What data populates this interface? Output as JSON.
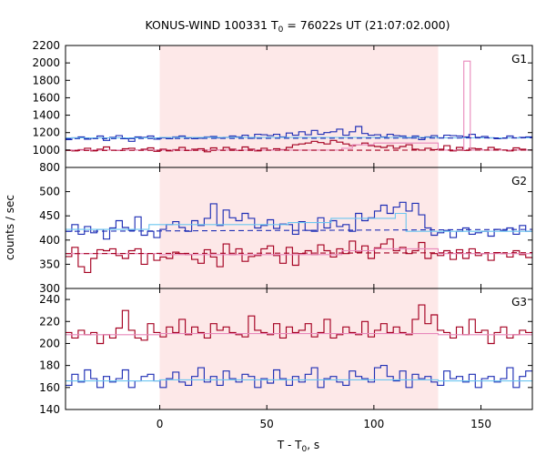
{
  "chart_data": {
    "type": "line",
    "title": "KONUS-WIND 100331 T",
    "title_sub": "0",
    "title_rest": " = 76022s UT (21:07:02.000)",
    "xlabel": "T - T",
    "xlabel_sub": "0",
    "xlabel_rest": ", s",
    "ylabel": "counts / sec",
    "xlim": [
      -44,
      174
    ],
    "x_ticks": [
      0,
      50,
      100,
      150
    ],
    "x_tick_labels": [
      "0",
      "50",
      "100",
      "150"
    ],
    "shaded_interval": [
      0,
      130
    ],
    "shade_color": "#fde8e8",
    "colors": {
      "red": "#a50021",
      "blue": "#1f2fb5",
      "pink": "#e888bb",
      "lightblue": "#6cc6f0"
    },
    "panels": [
      {
        "name": "G1",
        "ylim": [
          800,
          2200
        ],
        "y_ticks": [
          800,
          1000,
          1200,
          1400,
          1600,
          1800,
          2000,
          2200
        ],
        "y_tick_labels": [
          "800",
          "1000",
          "1200",
          "1400",
          "1600",
          "1800",
          "2000",
          "2200"
        ],
        "series": [
          {
            "color": "blue",
            "step": true,
            "x0": -44,
            "dx": 2.944,
            "values": [
              1120,
              1140,
              1150,
              1125,
              1135,
              1160,
              1110,
              1145,
              1165,
              1130,
              1100,
              1150,
              1145,
              1160,
              1125,
              1140,
              1130,
              1150,
              1160,
              1140,
              1130,
              1135,
              1150,
              1155,
              1140,
              1145,
              1160,
              1150,
              1170,
              1135,
              1180,
              1175,
              1165,
              1180,
              1150,
              1195,
              1170,
              1210,
              1175,
              1225,
              1180,
              1200,
              1210,
              1240,
              1170,
              1210,
              1270,
              1190,
              1170,
              1175,
              1150,
              1180,
              1165,
              1160,
              1140,
              1160,
              1120,
              1150,
              1165,
              1140,
              1170,
              1165,
              1160,
              1150,
              1180,
              1145,
              1155,
              1140,
              1130,
              1135,
              1160,
              1140,
              1145,
              1150
            ]
          },
          {
            "color": "red",
            "step": true,
            "x0": -44,
            "dx": 2.944,
            "values": [
              1000,
              990,
              1005,
              1020,
              990,
              1010,
              1035,
              1000,
              995,
              1015,
              1020,
              1000,
              1010,
              1025,
              985,
              1010,
              990,
              1005,
              1030,
              995,
              1010,
              1015,
              980,
              1025,
              1000,
              1030,
              1010,
              995,
              1035,
              1010,
              990,
              1020,
              1000,
              1015,
              1005,
              1030,
              1060,
              1070,
              1080,
              1100,
              1085,
              1070,
              1110,
              1090,
              1070,
              1050,
              1060,
              1080,
              1050,
              1040,
              1030,
              1050,
              1020,
              1040,
              1060,
              1010,
              1000,
              1020,
              1005,
              1010,
              1050,
              990,
              1030,
              995,
              1020,
              1015,
              1000,
              1030,
              1010,
              1000,
              990,
              1025,
              1010,
              1000
            ]
          },
          {
            "color": "pink",
            "step": false,
            "points": [
              [
                -44,
                1000
              ],
              [
                0,
                1000
              ],
              [
                0,
                1000
              ],
              [
                85,
                1000
              ],
              [
                85,
                1020
              ],
              [
                90,
                1020
              ],
              [
                90,
                1060
              ],
              [
                100,
                1060
              ],
              [
                100,
                1080
              ],
              [
                130,
                1080
              ],
              [
                130,
                1000
              ],
              [
                142,
                1000
              ],
              [
                142,
                2020
              ],
              [
                145,
                2020
              ],
              [
                145,
                1000
              ],
              [
                174,
                1000
              ]
            ]
          },
          {
            "color": "lightblue",
            "step": false,
            "points": [
              [
                -44,
                1140
              ],
              [
                0,
                1140
              ],
              [
                0,
                1145
              ],
              [
                130,
                1145
              ],
              [
                130,
                1140
              ],
              [
                174,
                1140
              ]
            ]
          },
          {
            "color": "blue",
            "dashed": true,
            "points": [
              [
                -44,
                1130
              ],
              [
                174,
                1140
              ]
            ]
          },
          {
            "color": "red",
            "dashed": true,
            "points": [
              [
                -44,
                995
              ],
              [
                174,
                1000
              ]
            ]
          }
        ]
      },
      {
        "name": "G2",
        "ylim": [
          300,
          550
        ],
        "y_ticks": [
          300,
          350,
          400,
          450,
          500
        ],
        "y_tick_labels": [
          "300",
          "350",
          "400",
          "450",
          "500"
        ],
        "series": [
          {
            "color": "blue",
            "step": true,
            "x0": -44,
            "dx": 2.944,
            "values": [
              418,
              432,
              412,
              428,
              415,
              422,
              402,
              425,
              440,
              426,
              420,
              448,
              410,
              418,
              405,
              422,
              432,
              438,
              426,
              418,
              440,
              430,
              445,
              475,
              430,
              462,
              446,
              440,
              455,
              445,
              425,
              430,
              442,
              424,
              433,
              432,
              412,
              438,
              420,
              418,
              446,
              425,
              440,
              428,
              432,
              418,
              455,
              440,
              446,
              460,
              472,
              455,
              468,
              478,
              460,
              476,
              452,
              425,
              410,
              415,
              420,
              405,
              418,
              425,
              412,
              415,
              418,
              408,
              422,
              420,
              425,
              412,
              430,
              418
            ]
          },
          {
            "color": "red",
            "step": true,
            "x0": -44,
            "dx": 2.944,
            "values": [
              366,
              385,
              345,
              333,
              362,
              380,
              378,
              382,
              368,
              362,
              378,
              382,
              350,
              372,
              358,
              365,
              362,
              375,
              372,
              370,
              360,
              352,
              380,
              365,
              345,
              392,
              370,
              382,
              356,
              366,
              368,
              382,
              388,
              368,
              352,
              385,
              348,
              372,
              378,
              370,
              390,
              378,
              365,
              382,
              372,
              398,
              375,
              388,
              362,
              384,
              392,
              402,
              378,
              385,
              372,
              378,
              395,
              362,
              372,
              368,
              378,
              360,
              380,
              362,
              382,
              368,
              372,
              358,
              374,
              372,
              365,
              378,
              370,
              364
            ]
          },
          {
            "color": "pink",
            "step": false,
            "points": [
              [
                -44,
                372
              ],
              [
                0,
                372
              ],
              [
                0,
                370
              ],
              [
                85,
                370
              ],
              [
                85,
                378
              ],
              [
                100,
                378
              ],
              [
                100,
                382
              ],
              [
                130,
                382
              ],
              [
                130,
                372
              ],
              [
                174,
                372
              ]
            ]
          },
          {
            "color": "lightblue",
            "step": false,
            "points": [
              [
                -44,
                422
              ],
              [
                -5,
                422
              ],
              [
                -5,
                432
              ],
              [
                60,
                432
              ],
              [
                60,
                436
              ],
              [
                80,
                436
              ],
              [
                80,
                445
              ],
              [
                110,
                445
              ],
              [
                110,
                455
              ],
              [
                115,
                455
              ],
              [
                115,
                418
              ],
              [
                174,
                418
              ]
            ]
          },
          {
            "color": "blue",
            "dashed": true,
            "points": [
              [
                -44,
                418
              ],
              [
                174,
                422
              ]
            ]
          },
          {
            "color": "red",
            "dashed": true,
            "points": [
              [
                -44,
                372
              ],
              [
                174,
                374
              ]
            ]
          }
        ]
      },
      {
        "name": "G3",
        "ylim": [
          140,
          250
        ],
        "y_ticks": [
          140,
          160,
          180,
          200,
          220,
          240
        ],
        "y_tick_labels": [
          "140",
          "160",
          "180",
          "200",
          "220",
          "240"
        ],
        "series": [
          {
            "color": "red",
            "step": true,
            "x0": -44,
            "dx": 2.944,
            "values": [
              210,
              205,
              212,
              208,
              210,
              200,
              208,
              205,
              214,
              230,
              212,
              205,
              203,
              218,
              210,
              206,
              215,
              210,
              222,
              208,
              215,
              210,
              205,
              218,
              212,
              215,
              210,
              208,
              206,
              225,
              212,
              210,
              208,
              218,
              205,
              215,
              210,
              212,
              218,
              206,
              210,
              222,
              205,
              208,
              215,
              210,
              208,
              220,
              206,
              212,
              218,
              210,
              215,
              210,
              208,
              222,
              235,
              218,
              226,
              212,
              210,
              205,
              215,
              208,
              222,
              210,
              212,
              200,
              210,
              215,
              205,
              208,
              212,
              210
            ]
          },
          {
            "color": "blue",
            "step": true,
            "x0": -44,
            "dx": 2.944,
            "values": [
              162,
              172,
              165,
              176,
              168,
              160,
              170,
              165,
              168,
              176,
              160,
              166,
              170,
              172,
              166,
              160,
              168,
              174,
              165,
              162,
              170,
              178,
              165,
              170,
              162,
              175,
              168,
              165,
              172,
              170,
              160,
              168,
              164,
              176,
              168,
              162,
              170,
              165,
              172,
              178,
              160,
              168,
              170,
              165,
              162,
              175,
              170,
              168,
              165,
              178,
              180,
              170,
              166,
              175,
              160,
              172,
              168,
              170,
              165,
              162,
              175,
              168,
              170,
              165,
              172,
              160,
              168,
              170,
              165,
              168,
              178,
              160,
              170,
              175
            ]
          },
          {
            "color": "pink",
            "step": false,
            "points": [
              [
                -44,
                208
              ],
              [
                0,
                208
              ],
              [
                0,
                209
              ],
              [
                130,
                209
              ],
              [
                130,
                208
              ],
              [
                174,
                208
              ]
            ]
          },
          {
            "color": "lightblue",
            "step": false,
            "points": [
              [
                -44,
                166
              ],
              [
                0,
                166
              ],
              [
                0,
                167
              ],
              [
                130,
                167
              ],
              [
                130,
                166
              ],
              [
                174,
                166
              ]
            ]
          }
        ]
      }
    ]
  }
}
